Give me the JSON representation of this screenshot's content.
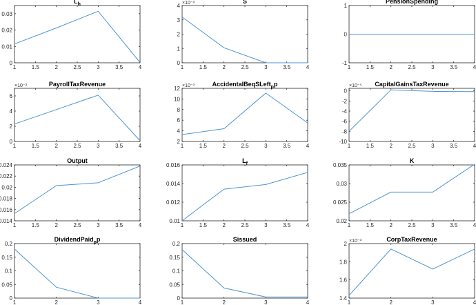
{
  "chart_data": [
    {
      "type": "line",
      "title": "L",
      "title_sub": "h",
      "x": [
        1,
        2,
        3,
        4
      ],
      "values": [
        0.0115,
        0.0213,
        0.0315,
        0.0002
      ],
      "xlim": [
        1,
        4
      ],
      "ylim": [
        0,
        0.035
      ],
      "xticks": [
        "1",
        "1.5",
        "2",
        "2.5",
        "3",
        "3.5",
        "4"
      ],
      "yticks": [
        0,
        0.01,
        0.02,
        0.03
      ],
      "yticklabels": [
        "0",
        "0.01",
        "0.02",
        "0.03"
      ],
      "exponent": "",
      "line_color": "#4d94d0"
    },
    {
      "type": "line",
      "title": "S",
      "title_sub": "",
      "x": [
        1,
        2,
        3,
        4
      ],
      "values": [
        3.2,
        1.05,
        0.0,
        0.0
      ],
      "xlim": [
        1,
        4
      ],
      "ylim": [
        0,
        4
      ],
      "xticks": [
        "1",
        "1.5",
        "2",
        "2.5",
        "3",
        "3.5",
        "4"
      ],
      "yticks": [
        0,
        1,
        2,
        3,
        4
      ],
      "yticklabels": [
        "0",
        "1",
        "2",
        "3",
        "4"
      ],
      "exponent": "×10⁻³",
      "line_color": "#4d94d0"
    },
    {
      "type": "line",
      "title": "PensionSpending",
      "title_sub": "",
      "x": [
        1,
        2,
        3,
        4
      ],
      "values": [
        0,
        0,
        0,
        0
      ],
      "xlim": [
        1,
        4
      ],
      "ylim": [
        -1,
        1
      ],
      "xticks": [
        "1",
        "1.5",
        "2",
        "2.5",
        "3",
        "3.5",
        "4"
      ],
      "yticks": [
        -1,
        0,
        1
      ],
      "yticklabels": [
        "-1",
        "0",
        "1"
      ],
      "exponent": "",
      "line_color": "#4d94d0"
    },
    {
      "type": "line",
      "title": "PayrollTaxRevenue",
      "title_sub": "",
      "x": [
        1,
        2,
        3,
        4
      ],
      "values": [
        2.3,
        4.2,
        6.1,
        0.1
      ],
      "xlim": [
        1,
        4
      ],
      "ylim": [
        0,
        7
      ],
      "xticks": [
        "1",
        "1.5",
        "2",
        "2.5",
        "3",
        "3.5",
        "4"
      ],
      "yticks": [
        0,
        2,
        4,
        6
      ],
      "yticklabels": [
        "0",
        "2",
        "4",
        "6"
      ],
      "exponent": "×10⁻³",
      "line_color": "#4d94d0"
    },
    {
      "type": "line",
      "title": "AccidentalBeqSLeft",
      "title_sub": "p",
      "title_suffix": "p",
      "x": [
        1,
        2,
        3,
        4
      ],
      "values": [
        3.3,
        4.4,
        11.1,
        5.5
      ],
      "xlim": [
        1,
        4
      ],
      "ylim": [
        2,
        12
      ],
      "xticks": [
        "1",
        "1.5",
        "2",
        "2.5",
        "3",
        "3.5",
        "4"
      ],
      "yticks": [
        2,
        4,
        6,
        8,
        10,
        12
      ],
      "yticklabels": [
        "2",
        "4",
        "6",
        "8",
        "10",
        "12"
      ],
      "exponent": "×10⁻³",
      "line_color": "#4d94d0"
    },
    {
      "type": "line",
      "title": "CapitalGainsTaxRevenue",
      "title_sub": "",
      "x": [
        1,
        2,
        3,
        4
      ],
      "values": [
        -8.0,
        0.2,
        -0.1,
        -0.15
      ],
      "xlim": [
        1,
        4
      ],
      "ylim": [
        -10,
        0.5
      ],
      "xticks": [
        "1",
        "1.5",
        "2",
        "2.5",
        "3",
        "3.5",
        "4"
      ],
      "yticks": [
        -10,
        -8,
        -6,
        -4,
        -2,
        0
      ],
      "yticklabels": [
        "-10",
        "-8",
        "-6",
        "-4",
        "-2",
        "0"
      ],
      "exponent": "×10⁻⁵",
      "line_color": "#4d94d0"
    },
    {
      "type": "line",
      "title": "Output",
      "title_sub": "",
      "x": [
        1,
        2,
        3,
        4
      ],
      "values": [
        0.0153,
        0.0203,
        0.0208,
        0.0238
      ],
      "xlim": [
        1,
        4
      ],
      "ylim": [
        0.014,
        0.024
      ],
      "xticks": [
        "1",
        "1.5",
        "2",
        "2.5",
        "3",
        "3.5",
        "4"
      ],
      "yticks": [
        0.014,
        0.016,
        0.018,
        0.02,
        0.022,
        0.024
      ],
      "yticklabels": [
        "0.014",
        "0.016",
        "0.018",
        "0.02",
        "0.022",
        "0.024"
      ],
      "exponent": "",
      "line_color": "#4d94d0"
    },
    {
      "type": "line",
      "title": "L",
      "title_sub": "f",
      "x": [
        1,
        2,
        3,
        4
      ],
      "values": [
        0.01,
        0.0134,
        0.0139,
        0.0152
      ],
      "xlim": [
        1,
        4
      ],
      "ylim": [
        0.01,
        0.016
      ],
      "xticks": [
        "1",
        "1.5",
        "2",
        "2.5",
        "3",
        "3.5",
        "4"
      ],
      "yticks": [
        0.01,
        0.012,
        0.014,
        0.016
      ],
      "yticklabels": [
        "0.01",
        "0.012",
        "0.014",
        "0.016"
      ],
      "exponent": "",
      "line_color": "#4d94d0"
    },
    {
      "type": "line",
      "title": "K",
      "title_sub": "",
      "x": [
        1,
        2,
        3,
        4
      ],
      "values": [
        0.0219,
        0.0277,
        0.0277,
        0.0352
      ],
      "xlim": [
        1,
        4
      ],
      "ylim": [
        0.02,
        0.035
      ],
      "xticks": [
        "1",
        "1.5",
        "2",
        "2.5",
        "3",
        "3.5",
        "4"
      ],
      "yticks": [
        0.02,
        0.025,
        0.03,
        0.035
      ],
      "yticklabels": [
        "0.02",
        "0.025",
        "0.03",
        "0.035"
      ],
      "exponent": "",
      "line_color": "#4d94d0"
    },
    {
      "type": "line",
      "title": "DividendPaid",
      "title_sub": "p",
      "title_suffix": "p",
      "x": [
        1,
        2,
        3,
        4
      ],
      "values": [
        0.18,
        0.04,
        0.0,
        0.0
      ],
      "xlim": [
        1,
        4
      ],
      "ylim": [
        0,
        0.2
      ],
      "xticks": [
        "1",
        "2",
        "3",
        "4"
      ],
      "yticks": [
        0,
        0.05,
        0.1,
        0.15,
        0.2
      ],
      "yticklabels": [
        "0",
        "0.05",
        "0.1",
        "0.15",
        "0.2"
      ],
      "exponent": "",
      "line_color": "#4d94d0"
    },
    {
      "type": "line",
      "title": "Sissued",
      "title_sub": "",
      "x": [
        1,
        2,
        3,
        4
      ],
      "values": [
        0.178,
        0.037,
        0.004,
        0.004
      ],
      "xlim": [
        1,
        4
      ],
      "ylim": [
        0,
        0.2
      ],
      "xticks": [
        "1",
        "2",
        "3",
        "4"
      ],
      "yticks": [
        0,
        0.05,
        0.1,
        0.15,
        0.2
      ],
      "yticklabels": [
        "0",
        "0.05",
        "0.1",
        "0.15",
        "0.2"
      ],
      "exponent": "",
      "line_color": "#4d94d0"
    },
    {
      "type": "line",
      "title": "CorpTaxRevenue",
      "title_sub": "",
      "x": [
        1,
        2,
        3,
        4
      ],
      "values": [
        1.43,
        1.94,
        1.72,
        1.94
      ],
      "xlim": [
        1,
        4
      ],
      "ylim": [
        1.4,
        2
      ],
      "xticks": [
        "1",
        "2",
        "3",
        "4"
      ],
      "yticks": [
        1.4,
        1.6,
        1.8,
        2
      ],
      "yticklabels": [
        "1.4",
        "1.6",
        "1.8",
        "2"
      ],
      "exponent": "×10⁻³",
      "line_color": "#4d94d0"
    }
  ]
}
